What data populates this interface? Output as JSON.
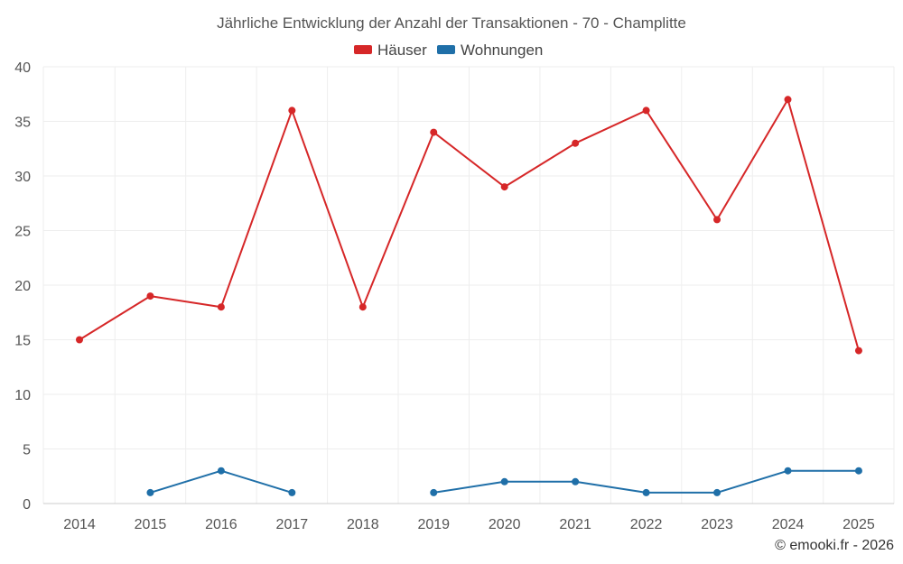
{
  "chart_data": {
    "type": "line",
    "title": "Jährliche Entwicklung der Anzahl der Transaktionen - 70 - Champlitte",
    "categories": [
      "2014",
      "2015",
      "2016",
      "2017",
      "2018",
      "2019",
      "2020",
      "2021",
      "2022",
      "2023",
      "2024",
      "2025"
    ],
    "series": [
      {
        "name": "Häuser",
        "color": "#d62728",
        "values": [
          15,
          19,
          18,
          36,
          18,
          34,
          29,
          33,
          36,
          26,
          37,
          14
        ]
      },
      {
        "name": "Wohnungen",
        "color": "#1f6fa8",
        "values": [
          null,
          1,
          3,
          1,
          null,
          1,
          2,
          2,
          1,
          1,
          3,
          3
        ]
      }
    ],
    "ylim": [
      0,
      40
    ],
    "yticks": [
      0,
      5,
      10,
      15,
      20,
      25,
      30,
      35,
      40
    ],
    "grid": true,
    "legend_position": "top-center",
    "xlabel": "",
    "ylabel": ""
  },
  "credit": "© emooki.fr - 2026"
}
